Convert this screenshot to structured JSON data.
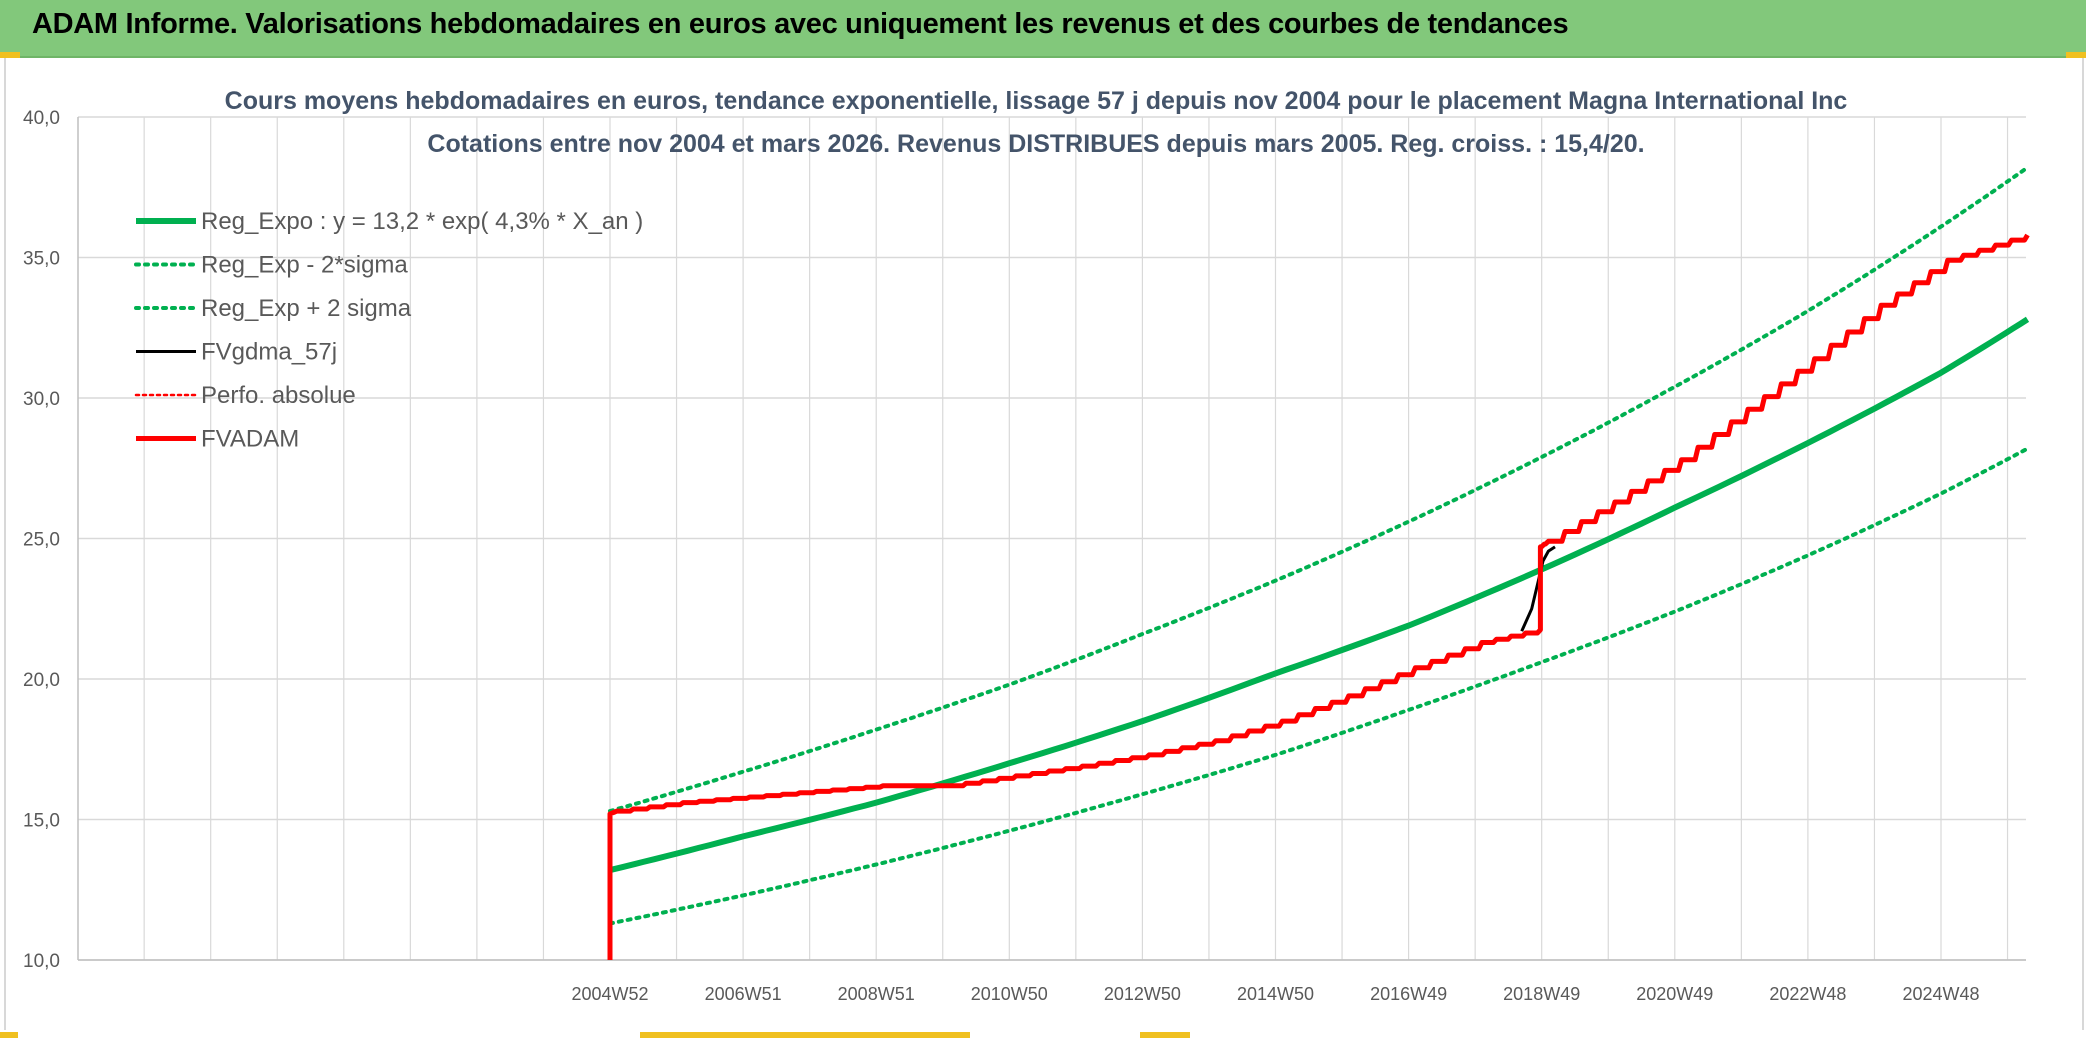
{
  "header": {
    "title": "ADAM Informe. Valorisations hebdomadaires en euros avec uniquement les revenus et des courbes de tendances"
  },
  "colors": {
    "banner": "#82c87b",
    "trend_green": "#00b050",
    "adam_red": "#ff0000",
    "gdma_black": "#000000",
    "grid": "#d9d9d9"
  },
  "chart_data": {
    "type": "line",
    "title": [
      "Cours moyens hebdomadaires en euros, tendance exponentielle, lissage 57 j depuis nov 2004 pour le placement Magna International Inc",
      "Cotations entre nov 2004 et mars 2026. Revenus DISTRIBUES depuis mars 2005. Reg. croiss. : 15,4/20."
    ],
    "x_tick_labels": [
      "2004W52",
      "2006W51",
      "2008W51",
      "2010W50",
      "2012W50",
      "2014W50",
      "2016W49",
      "2018W49",
      "2020W49",
      "2022W48",
      "2024W48"
    ],
    "x_axis_range": [
      "1995",
      "2026.2"
    ],
    "y_tick_labels": [
      "10,0",
      "15,0",
      "20,0",
      "25,0",
      "30,0",
      "35,0",
      "40,0"
    ],
    "ylim": [
      10,
      40
    ],
    "grid": true,
    "legend_position": "top-left",
    "legend": [
      {
        "label": "Reg_Expo : y = 13,2 * exp( 4,3% *  X_an )",
        "color": "#00b050",
        "style": "solid-thick",
        "icon": "line-solid-icon"
      },
      {
        "label": "Reg_Exp - 2*sigma",
        "color": "#00b050",
        "style": "dotted",
        "icon": "line-dotted-icon"
      },
      {
        "label": "Reg_Exp + 2 sigma",
        "color": "#00b050",
        "style": "dotted",
        "icon": "line-dotted-icon"
      },
      {
        "label": "FVgdma_57j",
        "color": "#000000",
        "style": "solid",
        "icon": "line-solid-icon"
      },
      {
        "label": "Perfo. absolue",
        "color": "#ff0000",
        "style": "dotted",
        "icon": "line-dotted-icon"
      },
      {
        "label": "FVADAM",
        "color": "#ff0000",
        "style": "solid-thick",
        "icon": "line-solid-icon"
      }
    ],
    "series": [
      {
        "name": "Reg_Expo : y = 13,2 * exp( 4,3% *  X_an )",
        "x": [
          2004.9,
          2006.9,
          2008.9,
          2010.9,
          2012.9,
          2014.9,
          2016.9,
          2018.9,
          2020.9,
          2022.9,
          2024.9,
          2026.2
        ],
        "values": [
          13.2,
          14.4,
          15.6,
          17.0,
          18.5,
          20.2,
          21.9,
          23.9,
          26.1,
          28.4,
          30.9,
          32.8
        ]
      },
      {
        "name": "Reg_Exp - 2*sigma",
        "x": [
          2004.9,
          2006.9,
          2008.9,
          2010.9,
          2012.9,
          2014.9,
          2016.9,
          2018.9,
          2020.9,
          2022.9,
          2024.9,
          2026.2
        ],
        "values": [
          11.3,
          12.3,
          13.4,
          14.6,
          15.9,
          17.3,
          18.9,
          20.6,
          22.4,
          24.4,
          26.6,
          28.2
        ]
      },
      {
        "name": "Reg_Exp + 2 sigma",
        "x": [
          2004.9,
          2006.9,
          2008.9,
          2010.9,
          2012.9,
          2014.9,
          2016.9,
          2018.9,
          2020.9,
          2022.9,
          2024.9,
          2026.2
        ],
        "values": [
          15.3,
          16.7,
          18.2,
          19.8,
          21.6,
          23.5,
          25.6,
          27.9,
          30.4,
          33.1,
          36.1,
          38.2
        ]
      },
      {
        "name": "FVgdma_57j",
        "x": [
          2018.6,
          2018.75,
          2018.85,
          2018.92,
          2019.0,
          2019.1
        ],
        "values": [
          21.7,
          22.5,
          23.5,
          24.2,
          24.55,
          24.7
        ]
      },
      {
        "name": "FVADAM",
        "x": [
          2004.9,
          2004.9,
          2005.0,
          2006.0,
          2007.0,
          2008.0,
          2009.0,
          2010.0,
          2011.0,
          2012.0,
          2013.0,
          2014.0,
          2015.0,
          2016.0,
          2017.0,
          2018.0,
          2018.88,
          2018.88,
          2019.0,
          2020.0,
          2021.0,
          2022.0,
          2023.0,
          2024.0,
          2025.0,
          2026.2
        ],
        "values": [
          10.0,
          15.2,
          15.3,
          15.6,
          15.8,
          16.0,
          16.2,
          16.2,
          16.55,
          16.9,
          17.3,
          17.8,
          18.5,
          19.4,
          20.4,
          21.3,
          21.75,
          24.7,
          24.9,
          26.3,
          27.8,
          29.6,
          31.4,
          33.3,
          34.9,
          35.8
        ]
      }
    ]
  }
}
